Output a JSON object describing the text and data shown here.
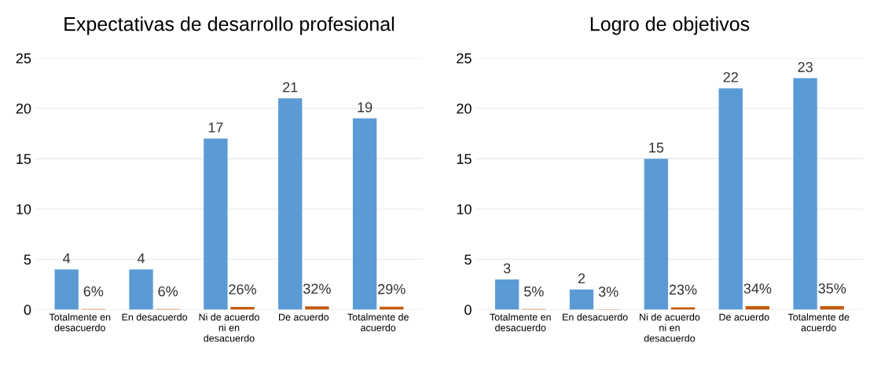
{
  "chart_data": [
    {
      "type": "bar",
      "title": "Expectativas de desarrollo profesional",
      "categories": [
        "Totalmente en\ndesacuerdo",
        "En desacuerdo",
        "Ni de acuerdo\nni en\ndesacuerdo",
        "De acuerdo",
        "Totalmente de\nacuerdo"
      ],
      "series": [
        {
          "color": "#5b9bd5",
          "values": [
            4,
            4,
            17,
            21,
            19
          ],
          "value_labels": [
            "4",
            "4",
            "17",
            "21",
            "19"
          ]
        },
        {
          "color": "#c55a11",
          "values": [
            0.06,
            0.06,
            0.26,
            0.32,
            0.29
          ],
          "value_labels": [
            "6%",
            "6%",
            "26%",
            "32%",
            "29%"
          ]
        }
      ],
      "ylim": [
        0,
        25
      ],
      "yticks": [
        0,
        5,
        10,
        15,
        20,
        25
      ],
      "grid": "y"
    },
    {
      "type": "bar",
      "title": "Logro de objetivos",
      "categories": [
        "Totalmente en\ndesacuerdo",
        "En desacuerdo",
        "Ni de acuerdo\nni en\ndesacuerdo",
        "De acuerdo",
        "Totalmente de\nacuerdo"
      ],
      "series": [
        {
          "color": "#5b9bd5",
          "values": [
            3,
            2,
            15,
            22,
            23
          ],
          "value_labels": [
            "3",
            "2",
            "15",
            "22",
            "23"
          ]
        },
        {
          "color": "#c55a11",
          "values": [
            0.05,
            0.03,
            0.23,
            0.34,
            0.35
          ],
          "value_labels": [
            "5%",
            "3%",
            "23%",
            "34%",
            "35%"
          ]
        }
      ],
      "ylim": [
        0,
        25
      ],
      "yticks": [
        0,
        5,
        10,
        15,
        20,
        25
      ],
      "grid": "y"
    }
  ]
}
